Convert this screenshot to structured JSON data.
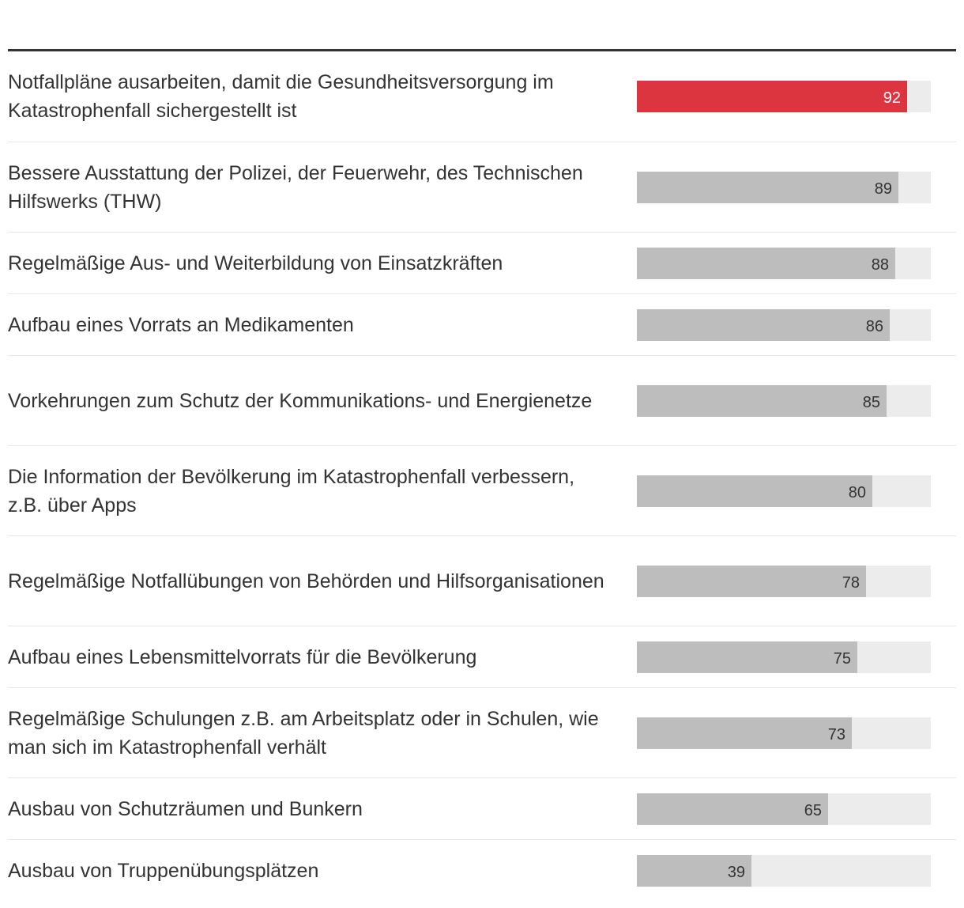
{
  "chart_data": {
    "type": "bar",
    "orientation": "horizontal",
    "title": "",
    "xlabel": "",
    "ylabel": "",
    "xlim": [
      0,
      100
    ],
    "highlight_index": 0,
    "colors": {
      "highlight": "#dc3540",
      "bar": "#bdbdbd",
      "track": "#ececec"
    },
    "categories": [
      "Notfallpläne ausarbeiten, damit die Gesundheitsversorgung im Katastrophenfall sichergestellt ist",
      "Bessere Ausstattung der Polizei, der Feuerwehr, des Technischen Hilfswerks (THW)",
      "Regelmäßige Aus- und Weiterbildung von Einsatzkräften",
      "Aufbau eines Vorrats an Medikamenten",
      "Vorkehrungen zum Schutz der Kommunikations- und Energienetze",
      "Die Information der Bevölkerung im Katastrophenfall verbessern, z.B. über Apps",
      "Regelmäßige Notfallübungen von Behörden und Hilfsorganisationen",
      "Aufbau eines Lebensmittelvorrats für die Bevölkerung",
      "Regelmäßige Schulungen z.B. am Arbeitsplatz oder in Schulen, wie man sich im Katastrophenfall verhält",
      "Ausbau von Schutzräumen und Bunkern",
      "Ausbau von Truppenübungsplätzen"
    ],
    "values": [
      92,
      89,
      88,
      86,
      85,
      80,
      78,
      75,
      73,
      65,
      39
    ]
  }
}
